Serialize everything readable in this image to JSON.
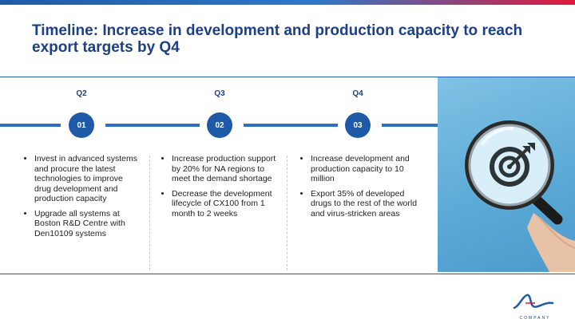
{
  "title": "Timeline: Increase in development and production capacity to reach export targets by Q4",
  "quarters": [
    {
      "label": "Q2",
      "step": "01"
    },
    {
      "label": "Q3",
      "step": "02"
    },
    {
      "label": "Q4",
      "step": "03"
    }
  ],
  "columns": [
    {
      "items": [
        "Invest in advanced systems and procure the latest technologies to improve drug development and production capacity",
        "Upgrade all systems at Boston R&D Centre with Den10109 systems"
      ]
    },
    {
      "items": [
        "Increase production support by 20% for NA regions to meet the demand shortage",
        "Decrease the development lifecycle of CX100 from 1 month to 2 weeks"
      ]
    },
    {
      "items": [
        "Increase development and production capacity to 10 million",
        "Export 35% of developed drugs to the rest of the world and virus-stricken areas"
      ]
    }
  ],
  "logo_text": "COMPANY",
  "colors": {
    "primary": "#1e5aa8",
    "accent": "#e0183a",
    "title": "#1d3f86"
  },
  "image": {
    "icons": [
      "magnifier-icon",
      "target-icon"
    ]
  }
}
